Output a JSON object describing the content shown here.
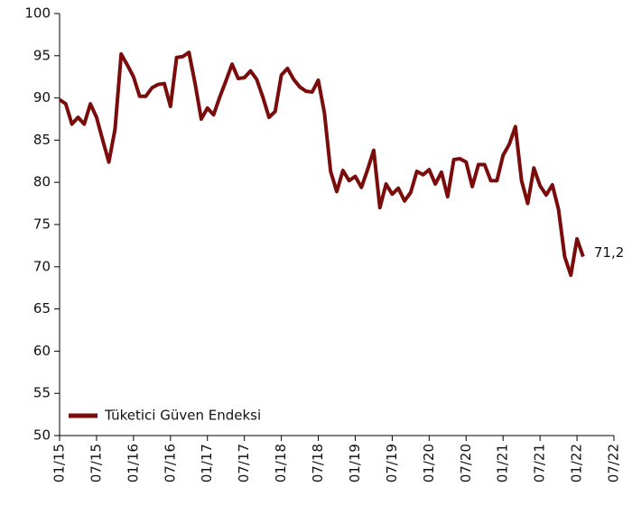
{
  "chart_data": {
    "type": "line",
    "categories": [
      "01/15",
      null,
      null,
      null,
      null,
      null,
      "07/15",
      null,
      null,
      null,
      null,
      null,
      "01/16",
      null,
      null,
      null,
      null,
      null,
      "07/16",
      null,
      null,
      null,
      null,
      null,
      "01/17",
      null,
      null,
      null,
      null,
      null,
      "07/17",
      null,
      null,
      null,
      null,
      null,
      "01/18",
      null,
      null,
      null,
      null,
      null,
      "07/18",
      null,
      null,
      null,
      null,
      null,
      "01/19",
      null,
      null,
      null,
      null,
      null,
      "07/19",
      null,
      null,
      null,
      null,
      null,
      "01/20",
      null,
      null,
      null,
      null,
      null,
      "07/20",
      null,
      null,
      null,
      null,
      null,
      "01/21",
      null,
      null,
      null,
      null,
      null,
      "07/21",
      null,
      null,
      null,
      null,
      null,
      "01/22",
      null,
      null,
      null,
      null,
      null,
      "07/22"
    ],
    "series": [
      {
        "name": "Tüketici Güven Endeksi",
        "color": "#7b0c0c",
        "values": [
          89.8,
          89.3,
          86.9,
          87.7,
          86.9,
          89.3,
          87.7,
          85.0,
          82.4,
          86.3,
          95.2,
          93.9,
          92.5,
          90.2,
          90.2,
          91.2,
          91.6,
          91.7,
          89.0,
          94.8,
          94.9,
          95.4,
          91.7,
          87.5,
          88.8,
          88.0,
          90.1,
          92.0,
          94.0,
          92.3,
          92.4,
          93.2,
          92.2,
          90.1,
          87.7,
          88.4,
          92.7,
          93.5,
          92.2,
          91.3,
          90.8,
          90.7,
          92.1,
          88.2,
          81.3,
          78.9,
          81.4,
          80.2,
          80.7,
          79.4,
          81.5,
          83.8,
          77.0,
          79.8,
          78.6,
          79.3,
          77.8,
          78.8,
          81.3,
          80.9,
          81.5,
          79.8,
          81.2,
          78.3,
          82.7,
          82.8,
          82.4,
          79.5,
          82.1,
          82.1,
          80.2,
          80.2,
          83.2,
          84.5,
          86.6,
          80.2,
          77.5,
          81.7,
          79.6,
          78.5,
          79.7,
          76.8,
          71.2,
          69.0,
          73.3,
          71.2,
          null,
          null,
          null,
          null,
          null
        ],
        "value_labels": [
          null,
          null,
          null,
          null,
          null,
          null,
          null,
          null,
          null,
          null,
          null,
          null,
          null,
          null,
          null,
          null,
          null,
          null,
          null,
          null,
          null,
          null,
          null,
          null,
          null,
          null,
          null,
          null,
          null,
          null,
          null,
          null,
          null,
          null,
          null,
          null,
          null,
          null,
          null,
          null,
          null,
          null,
          null,
          null,
          null,
          null,
          null,
          null,
          null,
          null,
          null,
          null,
          null,
          null,
          null,
          null,
          null,
          null,
          null,
          null,
          null,
          null,
          null,
          null,
          null,
          null,
          null,
          null,
          null,
          null,
          null,
          null,
          null,
          null,
          null,
          null,
          null,
          null,
          null,
          null,
          null,
          null,
          null,
          null,
          null,
          "71,2",
          null,
          null,
          null,
          null,
          null
        ]
      }
    ],
    "ylim": [
      50,
      100
    ],
    "yticks": [
      50,
      55,
      60,
      65,
      70,
      75,
      80,
      85,
      90,
      95,
      100
    ],
    "grid": false,
    "legend": "lower left"
  }
}
